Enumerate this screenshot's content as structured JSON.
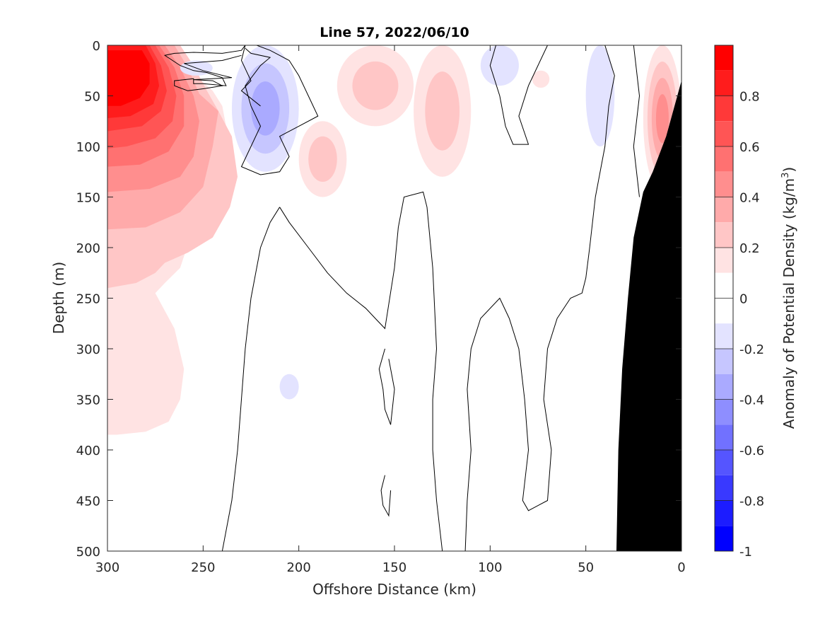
{
  "chart_data": {
    "type": "heatmap",
    "title": "Line 57, 2022/06/10",
    "xlabel": "Offshore Distance (km)",
    "ylabel": "Depth (m)",
    "colorbar_label": "Anomaly of Potential Density (kg/m",
    "colorbar_label_superscript": "3",
    "colorbar_label_close": ")",
    "xlim": [
      300,
      0
    ],
    "ylim": [
      0,
      500
    ],
    "x_reversed": true,
    "y_reversed": true,
    "x_ticks": [
      300,
      250,
      200,
      150,
      100,
      50,
      0
    ],
    "x_tick_labels": [
      "300",
      "250",
      "200",
      "150",
      "100",
      "50",
      "0"
    ],
    "y_ticks": [
      0,
      50,
      100,
      150,
      200,
      250,
      300,
      350,
      400,
      450,
      500
    ],
    "y_tick_labels": [
      "0",
      "50",
      "100",
      "150",
      "200",
      "250",
      "300",
      "350",
      "400",
      "450",
      "500"
    ],
    "clim": [
      -1,
      1
    ],
    "colorbar_ticks": [
      0.8,
      0.6,
      0.4,
      0.2,
      0,
      -0.2,
      -0.4,
      -0.6,
      -0.8,
      -1
    ],
    "colorbar_tick_labels": [
      "0.8",
      "0.6",
      "0.4",
      "0.2",
      "0",
      "-0.2",
      "-0.4",
      "-0.6",
      "-0.8",
      "-1"
    ],
    "colorbar_levels": [
      {
        "from": 0.9,
        "to": 1.0,
        "color": "#ff0000"
      },
      {
        "from": 0.8,
        "to": 0.9,
        "color": "#ff1c1c"
      },
      {
        "from": 0.7,
        "to": 0.8,
        "color": "#ff3939"
      },
      {
        "from": 0.6,
        "to": 0.7,
        "color": "#ff5555"
      },
      {
        "from": 0.5,
        "to": 0.6,
        "color": "#ff7171"
      },
      {
        "from": 0.4,
        "to": 0.5,
        "color": "#ff8e8e"
      },
      {
        "from": 0.3,
        "to": 0.4,
        "color": "#ffaaaa"
      },
      {
        "from": 0.2,
        "to": 0.3,
        "color": "#ffc6c6"
      },
      {
        "from": 0.1,
        "to": 0.2,
        "color": "#ffe3e3"
      },
      {
        "from": 0.0,
        "to": 0.1,
        "color": "#ffffff"
      },
      {
        "from": -0.1,
        "to": 0.0,
        "color": "#ffffff"
      },
      {
        "from": -0.2,
        "to": -0.1,
        "color": "#e3e3ff"
      },
      {
        "from": -0.3,
        "to": -0.2,
        "color": "#c6c6ff"
      },
      {
        "from": -0.4,
        "to": -0.3,
        "color": "#aaaaff"
      },
      {
        "from": -0.5,
        "to": -0.4,
        "color": "#8e8eff"
      },
      {
        "from": -0.6,
        "to": -0.5,
        "color": "#7171ff"
      },
      {
        "from": -0.7,
        "to": -0.6,
        "color": "#5555ff"
      },
      {
        "from": -0.8,
        "to": -0.7,
        "color": "#3939ff"
      },
      {
        "from": -0.9,
        "to": -0.8,
        "color": "#1c1c ff"
      },
      {
        "from": -1.0,
        "to": -0.9,
        "color": "#0000ff"
      }
    ],
    "colormap": "blue-white-red",
    "bathymetry_color": "#000000",
    "contour_line": "zero anomaly contour (black)",
    "features": [
      {
        "name": "offshore-dense-core",
        "sign": "positive",
        "x_km": [
          250,
          300
        ],
        "depth_m": [
          0,
          380
        ],
        "peak_value": 1.0,
        "peak_at": {
          "x_km": 290,
          "depth_m": 50
        }
      },
      {
        "name": "near-surface-light-228-205",
        "sign": "negative",
        "x_km": [
          200,
          235
        ],
        "depth_m": [
          0,
          125
        ],
        "peak_value": -0.4,
        "peak_at": {
          "x_km": 210,
          "depth_m": 40
        }
      },
      {
        "name": "light-patch-252",
        "sign": "negative",
        "x_km": [
          245,
          262
        ],
        "depth_m": [
          15,
          30
        ],
        "peak_value": -0.2
      },
      {
        "name": "dense-patch-185",
        "sign": "positive",
        "x_km": [
          175,
          200
        ],
        "depth_m": [
          75,
          150
        ],
        "peak_value": 0.3
      },
      {
        "name": "dense-patch-160",
        "sign": "positive",
        "x_km": [
          140,
          180
        ],
        "depth_m": [
          0,
          80
        ],
        "peak_value": 0.3
      },
      {
        "name": "dense-patch-120",
        "sign": "positive",
        "x_km": [
          110,
          140
        ],
        "depth_m": [
          0,
          130
        ],
        "peak_value": 0.3
      },
      {
        "name": "light-patch-95",
        "sign": "negative",
        "x_km": [
          85,
          105
        ],
        "depth_m": [
          0,
          40
        ],
        "peak_value": -0.2
      },
      {
        "name": "dense-patch-73",
        "sign": "positive",
        "x_km": [
          69,
          78
        ],
        "depth_m": [
          25,
          42
        ],
        "peak_value": 0.2
      },
      {
        "name": "light-patch-40",
        "sign": "negative",
        "x_km": [
          35,
          50
        ],
        "depth_m": [
          0,
          100
        ],
        "peak_value": -0.2
      },
      {
        "name": "nearshore-dense",
        "sign": "positive",
        "x_km": [
          0,
          20
        ],
        "depth_m": [
          0,
          145
        ],
        "peak_value": 0.5
      },
      {
        "name": "deep-light-patch-206",
        "sign": "negative",
        "x_km": [
          200,
          210
        ],
        "depth_m": [
          325,
          350
        ],
        "peak_value": -0.2
      }
    ],
    "bathymetry": [
      [
        0,
        35
      ],
      [
        8,
        90
      ],
      [
        15,
        125
      ],
      [
        20,
        145
      ],
      [
        25,
        190
      ],
      [
        28,
        250
      ],
      [
        31,
        320
      ],
      [
        33,
        400
      ],
      [
        34,
        500
      ],
      [
        0,
        500
      ]
    ],
    "zero_contours": [
      [
        [
          228,
          0
        ],
        [
          230,
          5
        ],
        [
          240,
          8
        ],
        [
          255,
          7
        ],
        [
          265,
          8
        ],
        [
          270,
          10
        ],
        [
          262,
          20
        ],
        [
          255,
          25
        ],
        [
          248,
          27
        ],
        [
          240,
          32
        ],
        [
          238,
          40
        ],
        [
          250,
          38
        ],
        [
          255,
          38
        ],
        [
          255,
          33
        ],
        [
          265,
          35
        ],
        [
          265,
          40
        ],
        [
          258,
          45
        ],
        [
          250,
          43
        ],
        [
          240,
          40
        ],
        [
          245,
          35
        ],
        [
          255,
          34
        ],
        [
          235,
          32
        ],
        [
          250,
          25
        ],
        [
          260,
          18
        ],
        [
          240,
          15
        ],
        [
          230,
          10
        ]
      ],
      [
        [
          222,
          0
        ],
        [
          215,
          5
        ],
        [
          210,
          10
        ],
        [
          205,
          15
        ],
        [
          200,
          30
        ],
        [
          195,
          50
        ],
        [
          190,
          70
        ],
        [
          200,
          80
        ],
        [
          210,
          90
        ],
        [
          205,
          110
        ],
        [
          210,
          125
        ],
        [
          220,
          128
        ],
        [
          230,
          120
        ],
        [
          225,
          100
        ],
        [
          220,
          80
        ],
        [
          225,
          60
        ],
        [
          228,
          40
        ],
        [
          220,
          20
        ],
        [
          215,
          12
        ],
        [
          225,
          8
        ],
        [
          228,
          3
        ]
      ],
      [
        [
          228,
          0
        ],
        [
          230,
          15
        ],
        [
          225,
          35
        ],
        [
          230,
          45
        ],
        [
          220,
          60
        ]
      ],
      [
        [
          210,
          160
        ],
        [
          215,
          175
        ],
        [
          220,
          200
        ],
        [
          225,
          250
        ],
        [
          228,
          300
        ],
        [
          230,
          350
        ],
        [
          232,
          400
        ],
        [
          235,
          450
        ],
        [
          240,
          500
        ]
      ],
      [
        [
          210,
          160
        ],
        [
          205,
          175
        ],
        [
          195,
          200
        ],
        [
          185,
          225
        ],
        [
          175,
          245
        ],
        [
          165,
          260
        ],
        [
          160,
          270
        ],
        [
          155,
          280
        ],
        [
          150,
          220
        ],
        [
          148,
          180
        ],
        [
          145,
          150
        ],
        [
          135,
          145
        ],
        [
          133,
          160
        ],
        [
          130,
          220
        ],
        [
          128,
          300
        ],
        [
          130,
          350
        ],
        [
          130,
          400
        ],
        [
          128,
          450
        ],
        [
          125,
          500
        ]
      ],
      [
        [
          155,
          300
        ],
        [
          158,
          320
        ],
        [
          156,
          340
        ],
        [
          155,
          360
        ],
        [
          152,
          375
        ],
        [
          150,
          340
        ],
        [
          153,
          310
        ]
      ],
      [
        [
          155,
          425
        ],
        [
          157,
          440
        ],
        [
          156,
          455
        ],
        [
          153,
          465
        ],
        [
          152,
          440
        ]
      ],
      [
        [
          113,
          500
        ],
        [
          112,
          450
        ],
        [
          110,
          400
        ],
        [
          112,
          340
        ],
        [
          110,
          300
        ],
        [
          105,
          270
        ],
        [
          95,
          250
        ],
        [
          90,
          270
        ],
        [
          85,
          300
        ],
        [
          82,
          350
        ],
        [
          80,
          400
        ],
        [
          83,
          450
        ],
        [
          80,
          460
        ],
        [
          70,
          450
        ],
        [
          68,
          400
        ],
        [
          72,
          350
        ],
        [
          70,
          300
        ],
        [
          65,
          270
        ],
        [
          58,
          250
        ],
        [
          52,
          245
        ],
        [
          50,
          230
        ],
        [
          48,
          200
        ],
        [
          45,
          150
        ],
        [
          40,
          100
        ],
        [
          38,
          60
        ],
        [
          35,
          30
        ],
        [
          40,
          0
        ]
      ],
      [
        [
          97,
          0
        ],
        [
          100,
          20
        ],
        [
          95,
          50
        ],
        [
          92,
          80
        ],
        [
          88,
          98
        ],
        [
          80,
          98
        ],
        [
          85,
          70
        ],
        [
          80,
          40
        ],
        [
          75,
          20
        ],
        [
          70,
          0
        ]
      ],
      [
        [
          25,
          0
        ],
        [
          22,
          50
        ],
        [
          25,
          100
        ],
        [
          22,
          150
        ]
      ]
    ]
  }
}
